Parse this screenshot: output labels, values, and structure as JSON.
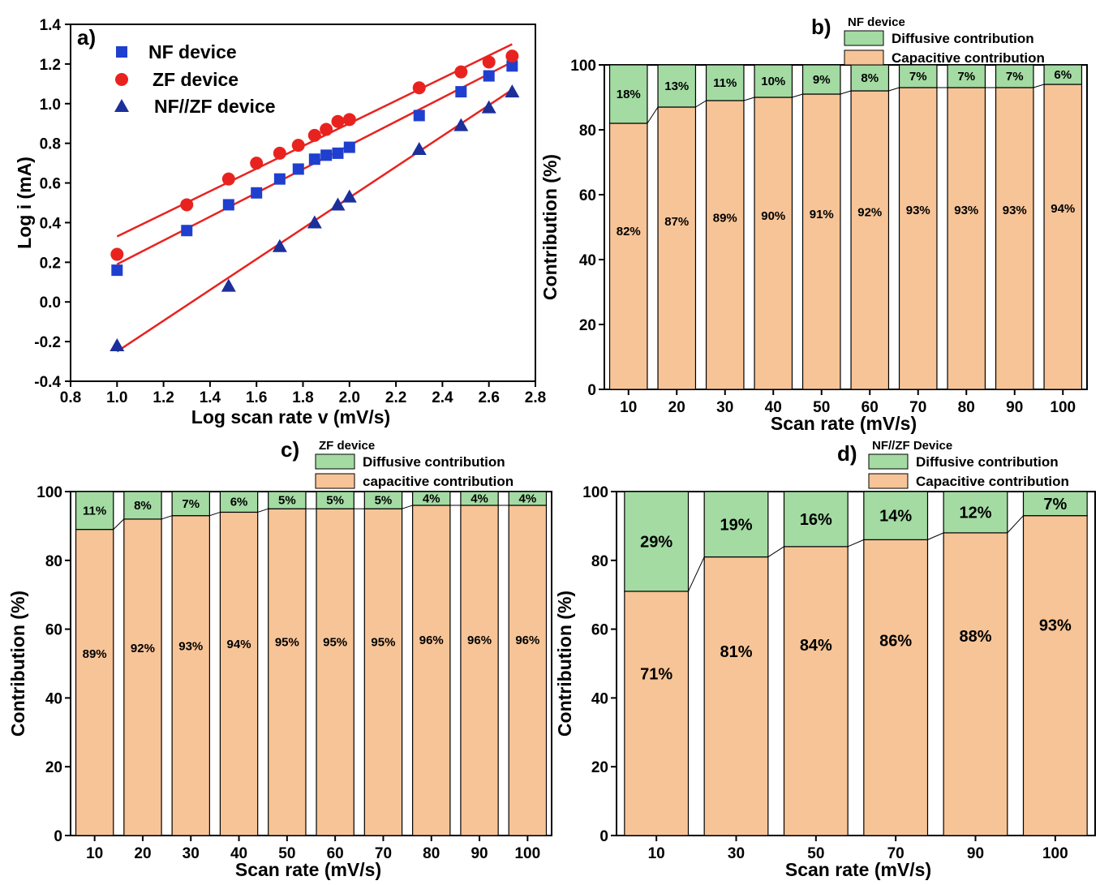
{
  "panels": {
    "a": {
      "letter": "a)"
    },
    "b": {
      "letter": "b)"
    },
    "c": {
      "letter": "c)"
    },
    "d": {
      "letter": "d)"
    }
  },
  "chart_data": [
    {
      "type": "scatter",
      "panel": "a",
      "title": "",
      "xlabel": "Log scan rate v (mV/s)",
      "ylabel": "Log i (mA)",
      "xlim": [
        0.8,
        2.8
      ],
      "ylim": [
        -0.4,
        1.4
      ],
      "xticks": [
        "0.8",
        "1.0",
        "1.2",
        "1.4",
        "1.6",
        "1.8",
        "2.0",
        "2.2",
        "2.4",
        "2.6",
        "2.8"
      ],
      "yticks": [
        "-0.4",
        "-0.2",
        "0.0",
        "0.2",
        "0.4",
        "0.6",
        "0.8",
        "1.0",
        "1.2",
        "1.4"
      ],
      "legend_position": "top-left",
      "fit_line_color": "#e8231f",
      "series": [
        {
          "name": "NF device",
          "marker": "square",
          "color": "#1f3fcf",
          "x": [
            1.0,
            1.3,
            1.48,
            1.6,
            1.7,
            1.78,
            1.85,
            1.9,
            1.95,
            2.0,
            2.3,
            2.48,
            2.6,
            2.7
          ],
          "y": [
            0.16,
            0.36,
            0.49,
            0.55,
            0.62,
            0.67,
            0.72,
            0.74,
            0.75,
            0.78,
            0.94,
            1.06,
            1.14,
            1.19
          ],
          "fit": [
            [
              1.0,
              0.19
            ],
            [
              2.7,
              1.21
            ]
          ]
        },
        {
          "name": "ZF device",
          "marker": "circle",
          "color": "#e8231f",
          "x": [
            1.0,
            1.3,
            1.48,
            1.6,
            1.7,
            1.78,
            1.85,
            1.9,
            1.95,
            2.0,
            2.3,
            2.48,
            2.6,
            2.7
          ],
          "y": [
            0.24,
            0.49,
            0.62,
            0.7,
            0.75,
            0.79,
            0.84,
            0.87,
            0.91,
            0.92,
            1.08,
            1.16,
            1.21,
            1.24
          ],
          "fit": [
            [
              1.0,
              0.33
            ],
            [
              2.7,
              1.3
            ]
          ]
        },
        {
          "name": "NF//ZF device",
          "marker": "triangle",
          "color": "#1c2f9a",
          "x": [
            1.0,
            1.48,
            1.7,
            1.85,
            1.95,
            2.0,
            2.3,
            2.48,
            2.6,
            2.7
          ],
          "y": [
            -0.22,
            0.08,
            0.28,
            0.4,
            0.49,
            0.53,
            0.77,
            0.89,
            0.98,
            1.06
          ],
          "fit": [
            [
              1.0,
              -0.25
            ],
            [
              2.7,
              1.07
            ]
          ]
        }
      ]
    },
    {
      "type": "bar",
      "stacked": true,
      "panel": "b",
      "title": "NF device",
      "xlabel": "Scan rate (mV/s)",
      "ylabel": "Contribution (%)",
      "ylim": [
        0,
        100
      ],
      "yticks": [
        "0",
        "20",
        "40",
        "60",
        "80",
        "100"
      ],
      "categories": [
        "10",
        "20",
        "30",
        "40",
        "50",
        "60",
        "70",
        "80",
        "90",
        "100"
      ],
      "legend_position": "top",
      "label_style": "small",
      "series": [
        {
          "name": "Capacitive contribution",
          "color": "#f7c497",
          "values": [
            82,
            87,
            89,
            90,
            91,
            92,
            93,
            93,
            93,
            94
          ],
          "labels": [
            "82%",
            "87%",
            "89%",
            "90%",
            "91%",
            "92%",
            "93%",
            "93%",
            "93%",
            "94%"
          ]
        },
        {
          "name": "Diffusive contribution",
          "color": "#a3dba3",
          "values": [
            18,
            13,
            11,
            10,
            9,
            8,
            7,
            7,
            7,
            6
          ],
          "labels": [
            "18%",
            "13%",
            "11%",
            "10%",
            "9%",
            "8%",
            "7%",
            "7%",
            "7%",
            "6%"
          ]
        }
      ]
    },
    {
      "type": "bar",
      "stacked": true,
      "panel": "c",
      "title": "ZF device",
      "xlabel": "Scan rate (mV/s)",
      "ylabel": "Contribution (%)",
      "ylim": [
        0,
        100
      ],
      "yticks": [
        "0",
        "20",
        "40",
        "60",
        "80",
        "100"
      ],
      "categories": [
        "10",
        "20",
        "30",
        "40",
        "50",
        "60",
        "70",
        "80",
        "90",
        "100"
      ],
      "legend_position": "top",
      "label_style": "small",
      "series": [
        {
          "name": "capacitive contribution",
          "color": "#f7c497",
          "values": [
            89,
            92,
            93,
            94,
            95,
            95,
            95,
            96,
            96,
            96
          ],
          "labels": [
            "89%",
            "92%",
            "93%",
            "94%",
            "95%",
            "95%",
            "95%",
            "96%",
            "96%",
            "96%"
          ]
        },
        {
          "name": "Diffusive contribution",
          "color": "#a3dba3",
          "values": [
            11,
            8,
            7,
            6,
            5,
            5,
            5,
            4,
            4,
            4
          ],
          "labels": [
            "11%",
            "8%",
            "7%",
            "6%",
            "5%",
            "5%",
            "5%",
            "4%",
            "4%",
            "4%"
          ]
        }
      ]
    },
    {
      "type": "bar",
      "stacked": true,
      "panel": "d",
      "title": "NF//ZF Device",
      "xlabel": "Scan rate (mV/s)",
      "ylabel": "Contribution (%)",
      "ylim": [
        0,
        100
      ],
      "yticks": [
        "0",
        "20",
        "40",
        "60",
        "80",
        "100"
      ],
      "categories": [
        "10",
        "30",
        "50",
        "70",
        "90",
        "100"
      ],
      "legend_position": "top",
      "label_style": "big",
      "series": [
        {
          "name": "Capacitive contribution",
          "color": "#f7c497",
          "values": [
            71,
            81,
            84,
            86,
            88,
            93
          ],
          "labels": [
            "71%",
            "81%",
            "84%",
            "86%",
            "88%",
            "93%"
          ]
        },
        {
          "name": "Diffusive contribution",
          "color": "#a3dba3",
          "values": [
            29,
            19,
            16,
            14,
            12,
            7
          ],
          "labels": [
            "29%",
            "19%",
            "16%",
            "14%",
            "12%",
            "7%"
          ]
        }
      ]
    }
  ]
}
